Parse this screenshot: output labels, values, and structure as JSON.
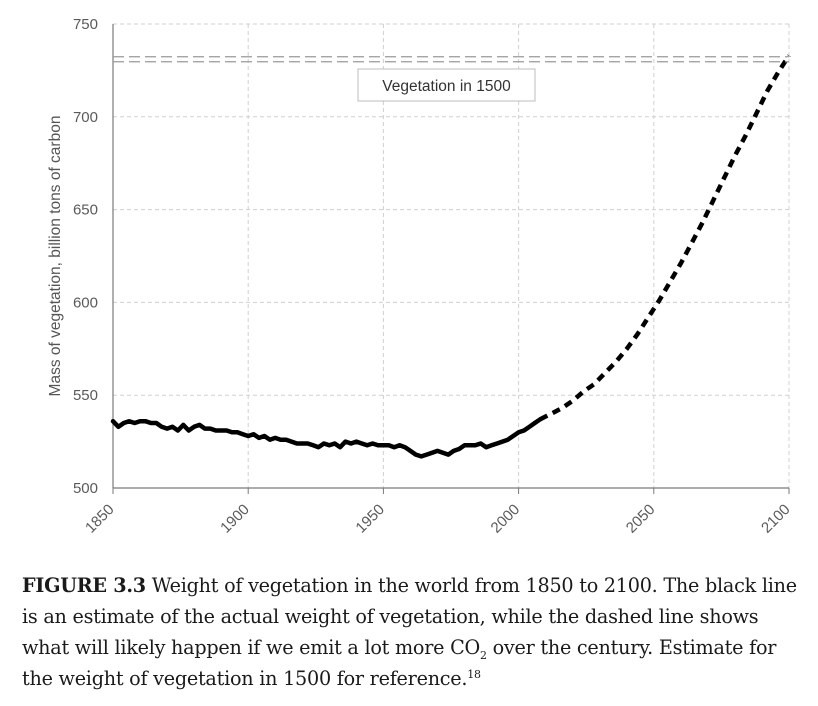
{
  "chart_data": {
    "type": "line",
    "title": "",
    "xlabel": "",
    "ylabel": "Mass of vegetation, billion tons of carbon",
    "xlim": [
      1850,
      2100
    ],
    "ylim": [
      500,
      750
    ],
    "x_ticks": [
      1850,
      1900,
      1950,
      2000,
      2050,
      2100
    ],
    "y_ticks": [
      500,
      550,
      600,
      650,
      700,
      750
    ],
    "grid": true,
    "series": [
      {
        "name": "Estimated actual weight of vegetation",
        "style": "solid",
        "color": "#000000",
        "x": [
          1850,
          1852,
          1854,
          1856,
          1858,
          1860,
          1862,
          1864,
          1866,
          1868,
          1870,
          1872,
          1874,
          1876,
          1878,
          1880,
          1882,
          1884,
          1886,
          1888,
          1890,
          1892,
          1894,
          1896,
          1898,
          1900,
          1902,
          1904,
          1906,
          1908,
          1910,
          1912,
          1914,
          1916,
          1918,
          1920,
          1922,
          1924,
          1926,
          1928,
          1930,
          1932,
          1934,
          1936,
          1938,
          1940,
          1942,
          1944,
          1946,
          1948,
          1950,
          1952,
          1954,
          1956,
          1958,
          1960,
          1962,
          1964,
          1966,
          1968,
          1970,
          1972,
          1974,
          1976,
          1978,
          1980,
          1982,
          1984,
          1986,
          1988,
          1990,
          1992,
          1994,
          1996,
          1998,
          2000,
          2002,
          2004,
          2006,
          2008
        ],
        "values": [
          536,
          533,
          535,
          536,
          535,
          536,
          536,
          535,
          535,
          533,
          532,
          533,
          531,
          534,
          531,
          533,
          534,
          532,
          532,
          531,
          531,
          531,
          530,
          530,
          529,
          528,
          529,
          527,
          528,
          526,
          527,
          526,
          526,
          525,
          524,
          524,
          524,
          523,
          522,
          524,
          523,
          524,
          522,
          525,
          524,
          525,
          524,
          523,
          524,
          523,
          523,
          523,
          522,
          523,
          522,
          520,
          518,
          517,
          518,
          519,
          520,
          519,
          518,
          520,
          521,
          523,
          523,
          523,
          524,
          522,
          523,
          524,
          525,
          526,
          528,
          530,
          531,
          533,
          535,
          537
        ]
      },
      {
        "name": "High CO2 emissions projection",
        "style": "dashed",
        "color": "#000000",
        "x": [
          2008,
          2012,
          2016,
          2020,
          2024,
          2028,
          2032,
          2036,
          2040,
          2044,
          2048,
          2052,
          2056,
          2060,
          2064,
          2068,
          2072,
          2076,
          2080,
          2084,
          2088,
          2092,
          2096,
          2100
        ],
        "values": [
          537,
          540,
          543,
          547,
          552,
          556,
          562,
          568,
          575,
          583,
          592,
          601,
          611,
          621,
          632,
          643,
          655,
          667,
          679,
          690,
          702,
          714,
          724,
          733
        ]
      },
      {
        "name": "Vegetation in 1500",
        "style": "double-dashed",
        "color": "#9a9a9a",
        "x": [
          1850,
          2100
        ],
        "values": [
          731,
          731
        ]
      }
    ],
    "annotations": [
      "Vegetation in 1500"
    ]
  },
  "caption": {
    "figure_label": "FIGURE 3.3",
    "line1": "Weight of vegetation in the world from 1850 to 2100. The black line",
    "line2": "is an estimate of the actual weight of vegetation, while the dashed line shows",
    "line3_pre": "what will likely happen if we emit a lot more CO",
    "line3_sub": "2",
    "line3_post": "over the century. Estimate for",
    "line4": "the weight of vegetation in 1500 for reference.",
    "footnote": "18"
  }
}
